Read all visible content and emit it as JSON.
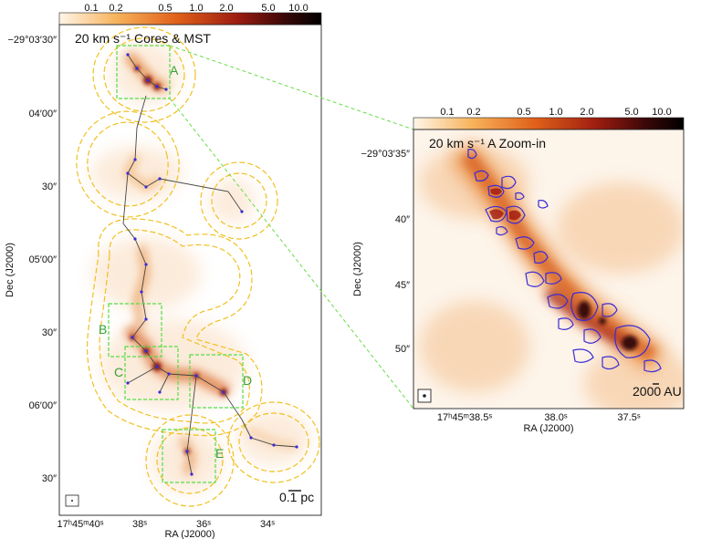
{
  "left_panel": {
    "colorbar_ticks": [
      "0.1",
      "0.2",
      "0.5",
      "1.0",
      "2.0",
      "5.0",
      "10.0"
    ],
    "title": "20 km s⁻¹ Cores & MST",
    "dec_ticks": [
      "−29°03′30″",
      "04′00″",
      "30″",
      "05′00″",
      "30″",
      "06′00″",
      "30″"
    ],
    "ra_ticks": [
      "17ʰ45ᵐ40ˢ",
      "38ˢ",
      "36ˢ",
      "34ˢ"
    ],
    "xlabel": "RA (J2000)",
    "ylabel": "Dec (J2000)",
    "scalebar": "0.1 pc",
    "regions": [
      "A",
      "B",
      "C",
      "D",
      "E"
    ]
  },
  "right_panel": {
    "colorbar_ticks": [
      "0.1",
      "0.2",
      "0.5",
      "1.0",
      "2.0",
      "5.0",
      "10.0"
    ],
    "title": "20 km s⁻¹ A Zoom-in",
    "dec_ticks": [
      "−29°03′35″",
      "40″",
      "45″",
      "50″"
    ],
    "ra_ticks": [
      "17ʰ45ᵐ38.5ˢ",
      "38.0ˢ",
      "37.5ˢ"
    ],
    "xlabel": "RA (J2000)",
    "ylabel": "Dec (J2000)",
    "scalebar": "2000 AU"
  },
  "colors": {
    "connector": "#66dd44",
    "box": "#55dd44",
    "contour": "#f0c020",
    "mst": "#444444",
    "core": "#3b2bd6"
  }
}
